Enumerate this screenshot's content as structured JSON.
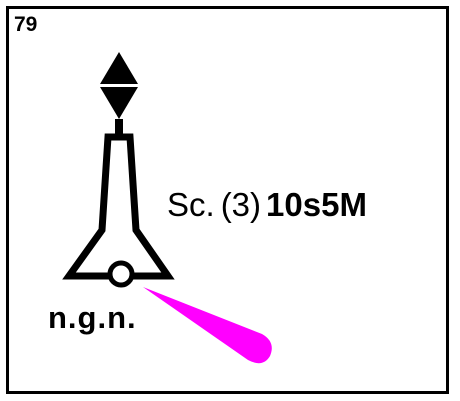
{
  "card": {
    "number": "79",
    "light_characteristic": {
      "rhythm": "Sc.",
      "group": "(3)",
      "period_range": "10s5M"
    },
    "abbreviation": "n.g.n."
  },
  "symbol": {
    "topmark": "diamond-icon",
    "body": "beacon-tower-icon",
    "light_flare": "light-flare-icon",
    "colors": {
      "outline": "#000000",
      "flare": "#ff00ff",
      "background": "#ffffff"
    }
  }
}
